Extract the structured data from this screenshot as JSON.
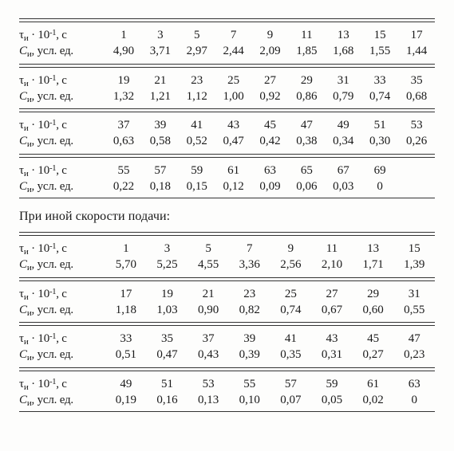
{
  "labels": {
    "tau": "τи · 10⁻¹, с",
    "c": "Cи, усл. ед."
  },
  "caption": "При иной скорости подачи:",
  "section1": {
    "blocks": [
      {
        "tau": [
          "1",
          "3",
          "5",
          "7",
          "9",
          "11",
          "13",
          "15",
          "17"
        ],
        "c": [
          "4,90",
          "3,71",
          "2,97",
          "2,44",
          "2,09",
          "1,85",
          "1,68",
          "1,55",
          "1,44"
        ]
      },
      {
        "tau": [
          "19",
          "21",
          "23",
          "25",
          "27",
          "29",
          "31",
          "33",
          "35"
        ],
        "c": [
          "1,32",
          "1,21",
          "1,12",
          "1,00",
          "0,92",
          "0,86",
          "0,79",
          "0,74",
          "0,68"
        ]
      },
      {
        "tau": [
          "37",
          "39",
          "41",
          "43",
          "45",
          "47",
          "49",
          "51",
          "53"
        ],
        "c": [
          "0,63",
          "0,58",
          "0,52",
          "0,47",
          "0,42",
          "0,38",
          "0,34",
          "0,30",
          "0,26"
        ]
      },
      {
        "tau": [
          "55",
          "57",
          "59",
          "61",
          "63",
          "65",
          "67",
          "69",
          ""
        ],
        "c": [
          "0,22",
          "0,18",
          "0,15",
          "0,12",
          "0,09",
          "0,06",
          "0,03",
          "0",
          ""
        ]
      }
    ]
  },
  "section2": {
    "blocks": [
      {
        "tau": [
          "1",
          "3",
          "5",
          "7",
          "9",
          "11",
          "13",
          "15"
        ],
        "c": [
          "5,70",
          "5,25",
          "4,55",
          "3,36",
          "2,56",
          "2,10",
          "1,71",
          "1,39"
        ]
      },
      {
        "tau": [
          "17",
          "19",
          "21",
          "23",
          "25",
          "27",
          "29",
          "31"
        ],
        "c": [
          "1,18",
          "1,03",
          "0,90",
          "0,82",
          "0,74",
          "0,67",
          "0,60",
          "0,55"
        ]
      },
      {
        "tau": [
          "33",
          "35",
          "37",
          "39",
          "41",
          "43",
          "45",
          "47"
        ],
        "c": [
          "0,51",
          "0,47",
          "0,43",
          "0,39",
          "0,35",
          "0,31",
          "0,27",
          "0,23"
        ]
      },
      {
        "tau": [
          "49",
          "51",
          "53",
          "55",
          "57",
          "59",
          "61",
          "63"
        ],
        "c": [
          "0,19",
          "0,16",
          "0,13",
          "0,10",
          "0,07",
          "0,05",
          "0,02",
          "0"
        ]
      }
    ]
  },
  "style": {
    "font_family": "Times New Roman",
    "font_size_pt": 11,
    "text_color": "#1a1a1a",
    "background_color": "#fdfdfc",
    "rule_color": "#333333"
  }
}
